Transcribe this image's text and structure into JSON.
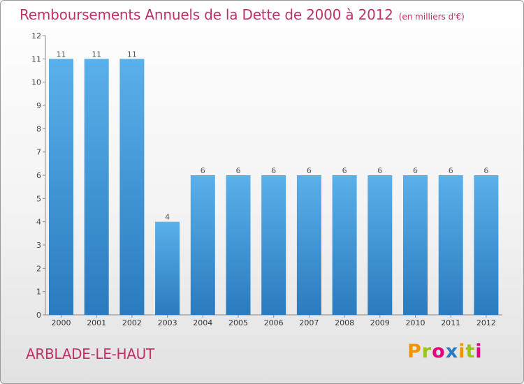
{
  "header": {
    "title": "Remboursements Annuels de la Dette de 2000 à 2012",
    "unit": "(en milliers d'€)"
  },
  "footer": {
    "commune": "ARBLADE-LE-HAUT",
    "logo": "Proxiti"
  },
  "colors": {
    "accent": "#c0306a",
    "bar_light": "#5ab0ea",
    "bar_dark": "#2a7bbf",
    "logo_letters": [
      "#f29400",
      "#9bc31c",
      "#e3007f",
      "#2a7bbf",
      "#f29400",
      "#9bc31c",
      "#e3007f"
    ]
  },
  "chart_data": {
    "type": "bar",
    "title": "Remboursements Annuels de la Dette de 2000 à 2012",
    "xlabel": "",
    "ylabel": "",
    "categories": [
      "2000",
      "2001",
      "2002",
      "2003",
      "2004",
      "2005",
      "2006",
      "2007",
      "2008",
      "2009",
      "2010",
      "2011",
      "2012"
    ],
    "values": [
      11,
      11,
      11,
      4,
      6,
      6,
      6,
      6,
      6,
      6,
      6,
      6,
      6
    ],
    "data_labels": [
      "11",
      "11",
      "11",
      "4",
      "6",
      "6",
      "6",
      "6",
      "6",
      "6",
      "6",
      "6",
      "6"
    ],
    "ylim": [
      0,
      12
    ],
    "yticks": [
      0,
      1,
      2,
      3,
      4,
      5,
      6,
      7,
      8,
      9,
      10,
      11,
      12
    ],
    "grid": false,
    "legend": "none"
  }
}
